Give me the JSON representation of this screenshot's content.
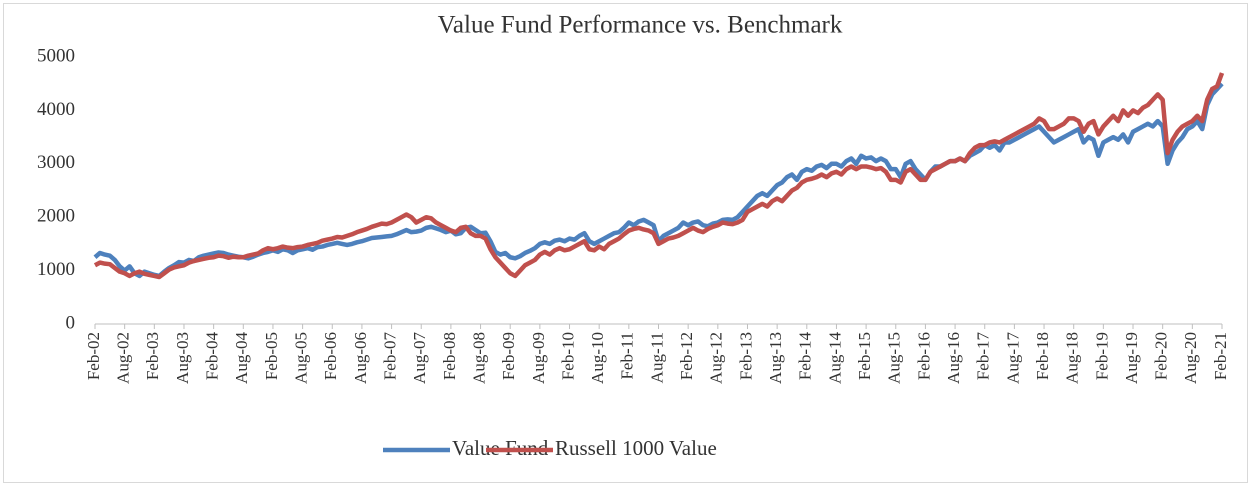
{
  "chart_data": {
    "type": "line",
    "title": "Value Fund Performance vs. Benchmark",
    "categories": [
      "Feb-02",
      null,
      null,
      null,
      null,
      null,
      "Aug-02",
      null,
      null,
      null,
      null,
      null,
      "Feb-03",
      null,
      null,
      null,
      null,
      null,
      "Aug-03",
      null,
      null,
      null,
      null,
      null,
      "Feb-04",
      null,
      null,
      null,
      null,
      null,
      "Aug-04",
      null,
      null,
      null,
      null,
      null,
      "Feb-05",
      null,
      null,
      null,
      null,
      null,
      "Aug-05",
      null,
      null,
      null,
      null,
      null,
      "Feb-06",
      null,
      null,
      null,
      null,
      null,
      "Aug-06",
      null,
      null,
      null,
      null,
      null,
      "Feb-07",
      null,
      null,
      null,
      null,
      null,
      "Aug-07",
      null,
      null,
      null,
      null,
      null,
      "Feb-08",
      null,
      null,
      null,
      null,
      null,
      "Aug-08",
      null,
      null,
      null,
      null,
      null,
      "Feb-09",
      null,
      null,
      null,
      null,
      null,
      "Aug-09",
      null,
      null,
      null,
      null,
      null,
      "Feb-10",
      null,
      null,
      null,
      null,
      null,
      "Aug-10",
      null,
      null,
      null,
      null,
      null,
      "Feb-11",
      null,
      null,
      null,
      null,
      null,
      "Aug-11",
      null,
      null,
      null,
      null,
      null,
      "Feb-12",
      null,
      null,
      null,
      null,
      null,
      "Aug-12",
      null,
      null,
      null,
      null,
      null,
      "Feb-13",
      null,
      null,
      null,
      null,
      null,
      "Aug-13",
      null,
      null,
      null,
      null,
      null,
      "Feb-14",
      null,
      null,
      null,
      null,
      null,
      "Aug-14",
      null,
      null,
      null,
      null,
      null,
      "Feb-15",
      null,
      null,
      null,
      null,
      null,
      "Aug-15",
      null,
      null,
      null,
      null,
      null,
      "Feb-16",
      null,
      null,
      null,
      null,
      null,
      "Aug-16",
      null,
      null,
      null,
      null,
      null,
      "Feb-17",
      null,
      null,
      null,
      null,
      null,
      "Aug-17",
      null,
      null,
      null,
      null,
      null,
      "Feb-18",
      null,
      null,
      null,
      null,
      null,
      "Aug-18",
      null,
      null,
      null,
      null,
      null,
      "Feb-19",
      null,
      null,
      null,
      null,
      null,
      "Aug-19",
      null,
      null,
      null,
      null,
      null,
      "Feb-20",
      null,
      null,
      null,
      null,
      null,
      "Aug-20",
      null,
      null,
      null,
      null,
      null,
      "Feb-21"
    ],
    "series": [
      {
        "name": "Value Fund",
        "color": "#4e81bd",
        "values": [
          1250,
          1330,
          1300,
          1280,
          1200,
          1080,
          1000,
          1080,
          950,
          900,
          980,
          950,
          920,
          900,
          980,
          1050,
          1100,
          1160,
          1150,
          1200,
          1180,
          1250,
          1280,
          1300,
          1320,
          1340,
          1330,
          1300,
          1280,
          1260,
          1250,
          1230,
          1260,
          1300,
          1330,
          1350,
          1380,
          1350,
          1400,
          1380,
          1330,
          1380,
          1400,
          1420,
          1390,
          1440,
          1450,
          1480,
          1500,
          1520,
          1500,
          1480,
          1500,
          1530,
          1550,
          1580,
          1610,
          1620,
          1630,
          1640,
          1650,
          1680,
          1720,
          1760,
          1720,
          1730,
          1750,
          1800,
          1820,
          1790,
          1760,
          1720,
          1750,
          1680,
          1700,
          1800,
          1820,
          1760,
          1700,
          1710,
          1550,
          1350,
          1300,
          1330,
          1250,
          1230,
          1270,
          1330,
          1370,
          1420,
          1500,
          1530,
          1500,
          1560,
          1580,
          1550,
          1600,
          1580,
          1650,
          1700,
          1550,
          1500,
          1550,
          1600,
          1650,
          1700,
          1720,
          1800,
          1900,
          1850,
          1920,
          1950,
          1900,
          1850,
          1550,
          1650,
          1700,
          1750,
          1800,
          1900,
          1850,
          1900,
          1920,
          1850,
          1830,
          1880,
          1900,
          1950,
          1960,
          1950,
          2000,
          2100,
          2200,
          2300,
          2400,
          2450,
          2400,
          2500,
          2600,
          2650,
          2750,
          2800,
          2700,
          2850,
          2900,
          2870,
          2950,
          2980,
          2920,
          3000,
          3000,
          2950,
          3050,
          3100,
          3000,
          3150,
          3100,
          3120,
          3050,
          3100,
          3050,
          2900,
          2900,
          2750,
          3000,
          3050,
          2900,
          2800,
          2700,
          2850,
          2950,
          2950,
          3000,
          3050,
          3050,
          3100,
          3050,
          3150,
          3200,
          3250,
          3350,
          3300,
          3350,
          3250,
          3400,
          3400,
          3450,
          3500,
          3550,
          3600,
          3650,
          3700,
          3600,
          3500,
          3400,
          3450,
          3500,
          3550,
          3600,
          3650,
          3400,
          3500,
          3450,
          3150,
          3400,
          3450,
          3500,
          3450,
          3550,
          3400,
          3600,
          3650,
          3700,
          3750,
          3700,
          3800,
          3700,
          3000,
          3250,
          3400,
          3500,
          3650,
          3700,
          3800,
          3650,
          4100,
          4300,
          4400,
          4500
        ]
      },
      {
        "name": "Russell 1000 Value",
        "color": "#c0504d",
        "values": [
          1100,
          1150,
          1130,
          1120,
          1050,
          980,
          950,
          900,
          950,
          980,
          940,
          920,
          900,
          880,
          950,
          1020,
          1060,
          1080,
          1100,
          1150,
          1180,
          1200,
          1220,
          1240,
          1250,
          1280,
          1270,
          1240,
          1260,
          1250,
          1250,
          1280,
          1300,
          1320,
          1380,
          1420,
          1400,
          1420,
          1450,
          1430,
          1420,
          1440,
          1450,
          1480,
          1500,
          1520,
          1560,
          1580,
          1600,
          1630,
          1620,
          1650,
          1680,
          1720,
          1750,
          1780,
          1820,
          1850,
          1880,
          1870,
          1900,
          1950,
          2000,
          2050,
          2000,
          1900,
          1950,
          2000,
          1980,
          1900,
          1850,
          1800,
          1750,
          1720,
          1800,
          1820,
          1700,
          1650,
          1650,
          1600,
          1400,
          1250,
          1150,
          1050,
          950,
          900,
          1000,
          1100,
          1150,
          1200,
          1300,
          1350,
          1300,
          1380,
          1420,
          1380,
          1400,
          1450,
          1500,
          1550,
          1400,
          1380,
          1450,
          1400,
          1500,
          1550,
          1600,
          1680,
          1750,
          1780,
          1800,
          1770,
          1750,
          1700,
          1500,
          1550,
          1600,
          1620,
          1650,
          1700,
          1750,
          1800,
          1750,
          1720,
          1780,
          1820,
          1850,
          1900,
          1880,
          1870,
          1900,
          1950,
          2100,
          2150,
          2200,
          2250,
          2200,
          2300,
          2350,
          2300,
          2400,
          2500,
          2550,
          2650,
          2700,
          2720,
          2750,
          2800,
          2750,
          2820,
          2850,
          2800,
          2900,
          2950,
          2900,
          2950,
          2950,
          2930,
          2900,
          2920,
          2850,
          2700,
          2700,
          2650,
          2850,
          2900,
          2800,
          2700,
          2700,
          2850,
          2900,
          2950,
          3000,
          3050,
          3050,
          3100,
          3050,
          3200,
          3300,
          3350,
          3350,
          3400,
          3420,
          3400,
          3450,
          3500,
          3550,
          3600,
          3650,
          3700,
          3750,
          3850,
          3800,
          3650,
          3650,
          3700,
          3750,
          3850,
          3850,
          3800,
          3600,
          3750,
          3800,
          3550,
          3700,
          3800,
          3900,
          3800,
          4000,
          3900,
          4000,
          3950,
          4050,
          4100,
          4200,
          4300,
          4200,
          3200,
          3450,
          3600,
          3700,
          3750,
          3800,
          3900,
          3800,
          4200,
          4400,
          4450,
          4700
        ]
      }
    ],
    "ylim": [
      0,
      5000
    ],
    "yticks": [
      0,
      1000,
      2000,
      3000,
      4000,
      5000
    ],
    "grid": false,
    "legend": "bottom"
  }
}
